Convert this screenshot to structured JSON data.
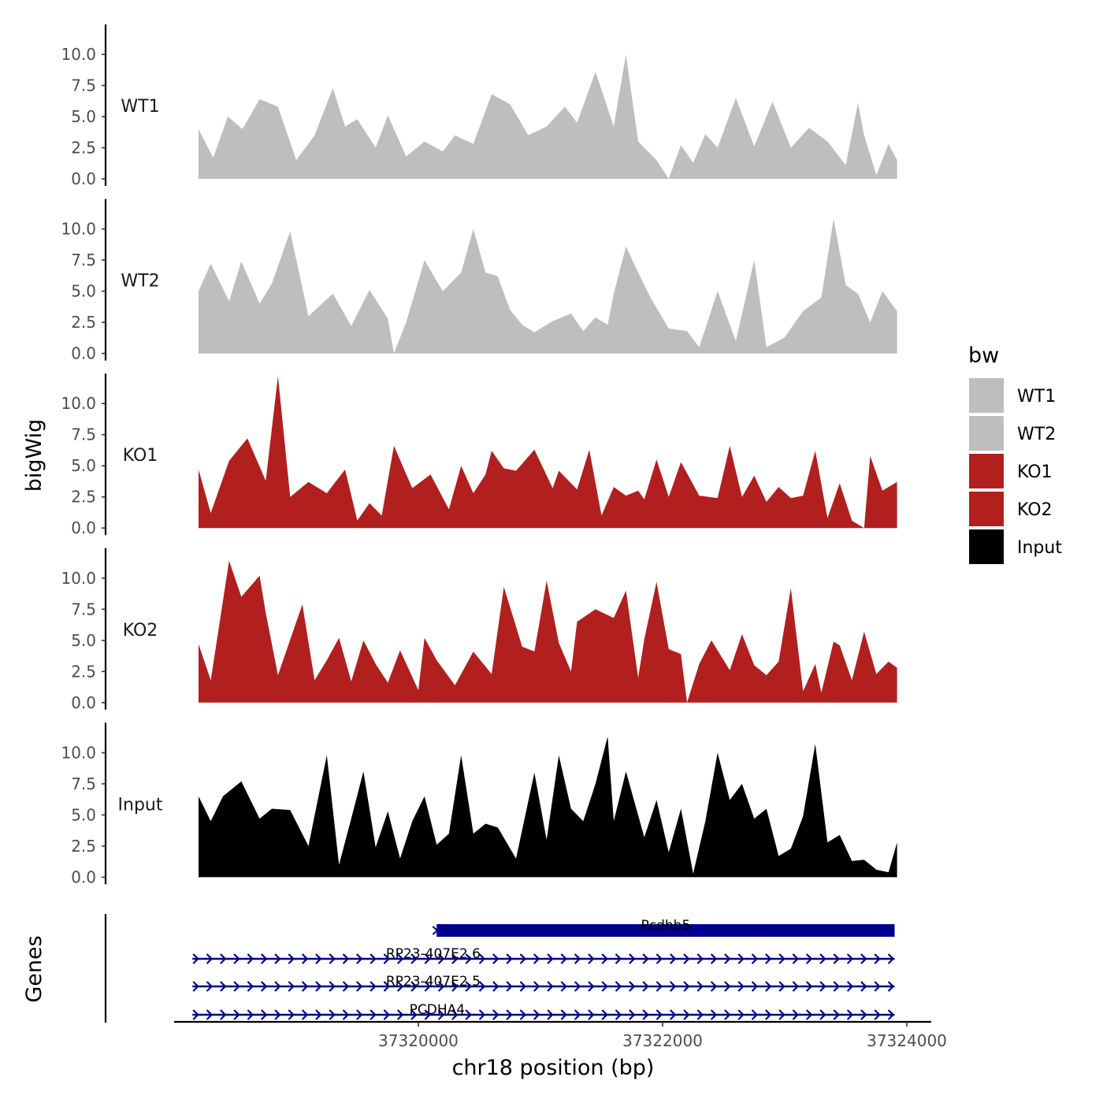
{
  "chart_data": {
    "type": "area",
    "ylabel": "bigWig",
    "xlabel": "chr18 position (bp)",
    "gene_track_label": "Genes",
    "ylim": [
      0,
      12.5
    ],
    "yticks": [
      "0.0",
      "2.5",
      "5.0",
      "7.5",
      "10.0"
    ],
    "ytick_values": [
      0,
      2.5,
      5,
      7.5,
      10
    ],
    "xlim": [
      37318000,
      37324200
    ],
    "xticks": [
      "37320000",
      "37322000",
      "37324000"
    ],
    "xtick_values": [
      37320000,
      37322000,
      37324000
    ],
    "legend_title": "bw",
    "legend": [
      {
        "name": "WT1",
        "color": "#bebebe"
      },
      {
        "name": "WT2",
        "color": "#bebebe"
      },
      {
        "name": "KO1",
        "color": "#b21f1f"
      },
      {
        "name": "KO2",
        "color": "#b21f1f"
      },
      {
        "name": "Input",
        "color": "#000000"
      }
    ],
    "series": [
      {
        "name": "WT1",
        "color": "#bebebe",
        "x": [
          37318200,
          37318320,
          37318440,
          37318560,
          37318700,
          37318850,
          37319000,
          37319150,
          37319300,
          37319400,
          37319500,
          37319650,
          37319750,
          37319900,
          37320050,
          37320200,
          37320300,
          37320450,
          37320600,
          37320750,
          37320900,
          37321050,
          37321200,
          37321300,
          37321450,
          37321600,
          37321700,
          37321800,
          37321950,
          37322050,
          37322150,
          37322250,
          37322350,
          37322450,
          37322600,
          37322750,
          37322900,
          37323050,
          37323200,
          37323350,
          37323500,
          37323600,
          37323650,
          37323750,
          37323850,
          37323920
        ],
        "values": [
          4,
          1.7,
          5,
          4,
          6.4,
          5.8,
          1.5,
          3.5,
          7.3,
          4.2,
          4.8,
          2.5,
          5.1,
          1.8,
          3,
          2.2,
          3.5,
          2.8,
          6.8,
          6,
          3.5,
          4.2,
          5.8,
          4.5,
          8.6,
          4.2,
          10,
          3,
          1.5,
          0,
          2.7,
          1.3,
          3.6,
          2.5,
          6.5,
          2.6,
          6.2,
          2.5,
          4.1,
          3,
          1.1,
          6.1,
          3.5,
          0.3,
          2.8,
          1.5
        ]
      },
      {
        "name": "WT2",
        "color": "#bebebe",
        "x": [
          37318200,
          37318300,
          37318450,
          37318550,
          37318700,
          37318800,
          37318950,
          37319100,
          37319300,
          37319450,
          37319600,
          37319750,
          37319800,
          37319900,
          37320050,
          37320200,
          37320350,
          37320450,
          37320550,
          37320650,
          37320750,
          37320850,
          37320950,
          37321100,
          37321250,
          37321350,
          37321450,
          37321550,
          37321600,
          37321700,
          37321800,
          37321900,
          37322050,
          37322200,
          37322300,
          37322450,
          37322600,
          37322750,
          37322850,
          37323000,
          37323150,
          37323300,
          37323400,
          37323500,
          37323600,
          37323700,
          37323800,
          37323920
        ],
        "values": [
          5,
          7.2,
          4.2,
          7.4,
          4,
          5.6,
          9.8,
          3,
          4.8,
          2.2,
          5.1,
          2.8,
          0,
          2.5,
          7.5,
          5,
          6.5,
          10,
          6.5,
          6.2,
          3.5,
          2.3,
          1.7,
          2.6,
          3.2,
          1.8,
          2.9,
          2.3,
          4.8,
          8.6,
          6.5,
          4.5,
          2,
          1.8,
          0.5,
          5,
          1,
          7.5,
          0.5,
          1.3,
          3.4,
          4.5,
          10.8,
          5.5,
          4.8,
          2.5,
          5,
          3.4
        ]
      },
      {
        "name": "KO1",
        "color": "#b21f1f",
        "x": [
          37318200,
          37318300,
          37318450,
          37318600,
          37318750,
          37318850,
          37318950,
          37319100,
          37319250,
          37319400,
          37319500,
          37319600,
          37319700,
          37319800,
          37319950,
          37320100,
          37320250,
          37320350,
          37320450,
          37320550,
          37320600,
          37320700,
          37320800,
          37320950,
          37321100,
          37321150,
          37321300,
          37321400,
          37321500,
          37321600,
          37321700,
          37321800,
          37321850,
          37321950,
          37322050,
          37322150,
          37322300,
          37322450,
          37322550,
          37322650,
          37322750,
          37322850,
          37322950,
          37323050,
          37323150,
          37323250,
          37323350,
          37323450,
          37323550,
          37323650,
          37323700,
          37323800,
          37323920
        ],
        "values": [
          4.7,
          1.2,
          5.4,
          7.2,
          3.8,
          12.2,
          2.5,
          3.7,
          2.8,
          4.7,
          0.6,
          2,
          1,
          6.6,
          3.2,
          4.3,
          1.5,
          5,
          2.8,
          4.3,
          6.2,
          4.8,
          4.6,
          6.3,
          3.2,
          4.6,
          3.1,
          6.3,
          1,
          3.3,
          2.6,
          3,
          2.3,
          5.5,
          2.5,
          5.3,
          2.6,
          2.4,
          6.6,
          2.5,
          4.2,
          2.1,
          3.3,
          2.4,
          2.6,
          6.2,
          0.8,
          3.6,
          0.6,
          0,
          5.8,
          3,
          3.7
        ]
      },
      {
        "name": "KO2",
        "color": "#b21f1f",
        "x": [
          37318200,
          37318300,
          37318450,
          37318550,
          37318700,
          37318750,
          37318850,
          37319050,
          37319150,
          37319250,
          37319350,
          37319450,
          37319550,
          37319650,
          37319750,
          37319850,
          37320000,
          37320050,
          37320150,
          37320300,
          37320450,
          37320600,
          37320700,
          37320850,
          37320950,
          37321050,
          37321150,
          37321250,
          37321300,
          37321450,
          37321600,
          37321700,
          37321800,
          37321850,
          37321950,
          37322050,
          37322150,
          37322200,
          37322300,
          37322400,
          37322550,
          37322650,
          37322750,
          37322850,
          37322950,
          37323050,
          37323150,
          37323250,
          37323300,
          37323400,
          37323450,
          37323550,
          37323650,
          37323750,
          37323850,
          37323920
        ],
        "values": [
          4.7,
          1.8,
          11.4,
          8.5,
          10.2,
          7.2,
          2.2,
          7.9,
          1.8,
          3.4,
          5.2,
          1.7,
          5,
          3.1,
          1.6,
          4.2,
          1,
          5.2,
          3.4,
          1.4,
          4.1,
          2.3,
          9.3,
          4.5,
          4.1,
          9.8,
          4.8,
          2.5,
          6.5,
          7.5,
          6.8,
          9,
          2,
          5.1,
          9.7,
          4.3,
          3.9,
          0,
          3.1,
          5,
          2.6,
          5.5,
          3,
          2.2,
          3.3,
          9.2,
          0.9,
          3.1,
          0.8,
          4.9,
          4.6,
          1.8,
          5.7,
          2.3,
          3.3,
          2.8
        ]
      },
      {
        "name": "Input",
        "color": "#000000",
        "x": [
          37318200,
          37318300,
          37318400,
          37318550,
          37318700,
          37318800,
          37318950,
          37319100,
          37319250,
          37319350,
          37319450,
          37319550,
          37319650,
          37319750,
          37319850,
          37319950,
          37320050,
          37320150,
          37320250,
          37320350,
          37320450,
          37320550,
          37320650,
          37320800,
          37320950,
          37321050,
          37321150,
          37321250,
          37321350,
          37321450,
          37321550,
          37321600,
          37321700,
          37321850,
          37321950,
          37322050,
          37322150,
          37322250,
          37322350,
          37322450,
          37322550,
          37322650,
          37322750,
          37322850,
          37322950,
          37323050,
          37323150,
          37323250,
          37323350,
          37323450,
          37323550,
          37323650,
          37323750,
          37323850,
          37323920
        ],
        "values": [
          6.5,
          4.5,
          6.5,
          7.7,
          4.7,
          5.5,
          5.4,
          2.5,
          9.8,
          1,
          4.7,
          8.5,
          2.4,
          5.3,
          1.5,
          4.5,
          6.5,
          2.6,
          3.5,
          9.8,
          3.5,
          4.3,
          4,
          1.5,
          8.4,
          3,
          9.8,
          5.5,
          4.5,
          7.5,
          11.3,
          4.5,
          8.5,
          3.2,
          6.2,
          2,
          5.5,
          0.3,
          4.5,
          10,
          6.2,
          7.5,
          4.7,
          5.5,
          1.7,
          2.3,
          4.9,
          10.7,
          2.8,
          3.4,
          1.3,
          1.4,
          0.6,
          0.4,
          2.8
        ]
      }
    ],
    "genes": [
      {
        "name": "Pcdhb5",
        "start": 37320150,
        "end": 37323900,
        "color": "#00008b",
        "style": "block"
      },
      {
        "name": "RP23-407E2.6",
        "start": 37318150,
        "end": 37323900,
        "color": "#00008b",
        "style": "arrows"
      },
      {
        "name": "RP23-407E2.5",
        "start": 37318150,
        "end": 37323900,
        "color": "#00008b",
        "style": "arrows"
      },
      {
        "name": "PCDHA4",
        "start": 37318150,
        "end": 37323900,
        "color": "#00008b",
        "style": "arrows"
      }
    ]
  }
}
